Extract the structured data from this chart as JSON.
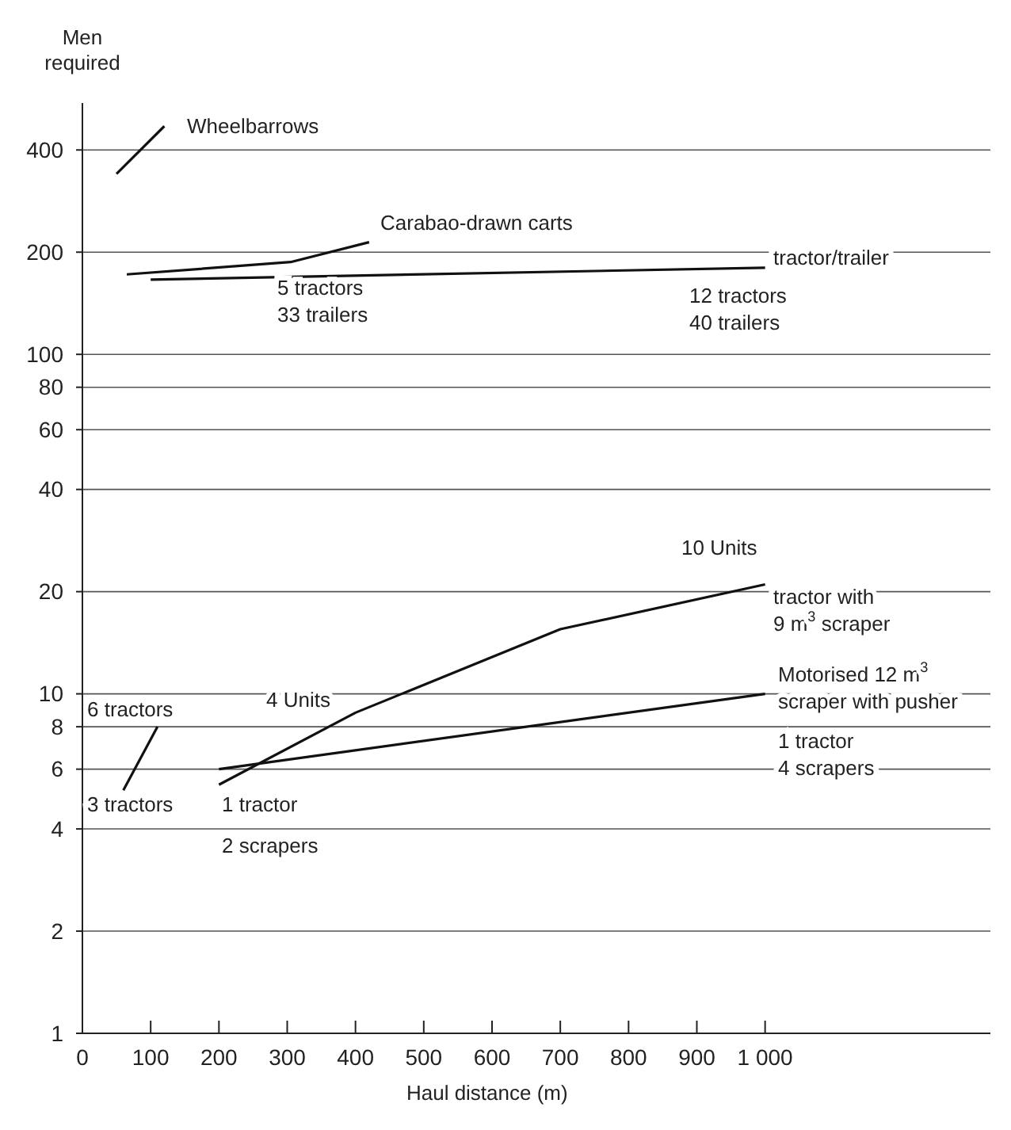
{
  "chart_data": {
    "type": "line",
    "xlabel": "Haul distance (m)",
    "ylabel": "Men required",
    "log": "y",
    "series": [
      {
        "color": "#111111",
        "x": [
          50,
          120
        ],
        "values": [
          340,
          470
        ]
      },
      {
        "color": "#111111",
        "x": [
          65,
          305,
          420
        ],
        "values": [
          172,
          187,
          214
        ]
      },
      {
        "color": "#111111",
        "x": [
          100,
          1000
        ],
        "values": [
          166,
          180
        ]
      },
      {
        "color": "#111111",
        "x": [
          200,
          400,
          700,
          1000
        ],
        "values": [
          5.4,
          8.8,
          15.5,
          21
        ]
      },
      {
        "color": "#111111",
        "x": [
          200,
          1000
        ],
        "values": [
          6,
          10
        ]
      },
      {
        "color": "#111111",
        "x": [
          60,
          110
        ],
        "values": [
          5.2,
          8
        ]
      }
    ],
    "xlim": [
      0,
      1330
    ],
    "ylim": [
      1,
      550
    ],
    "xticks": [
      0,
      100,
      200,
      300,
      400,
      500,
      600,
      700,
      800,
      900,
      {
        "value": 1000,
        "label": "1 000"
      }
    ],
    "yticks": [
      1,
      2,
      4,
      6,
      8,
      10,
      20,
      40,
      60,
      80,
      100,
      200,
      400
    ],
    "grid": "y",
    "marker": "none",
    "line_style": "solid",
    "annotations": [
      "Wheelbarrows",
      "Carabao-drawn carts",
      "tractor/trailer",
      "5 tractors\n33 trailers",
      "12 tractors\n40 trailers",
      "10 Units",
      "tractor with\n9 m$^{3}$ scraper",
      "Motorised 12 m$^{3}$\nscraper with pusher",
      "1 tractor\n4 scrapers",
      "6 tractors",
      "4 Units",
      "3 tractors",
      "1 tractor",
      "2 scrapers"
    ]
  }
}
